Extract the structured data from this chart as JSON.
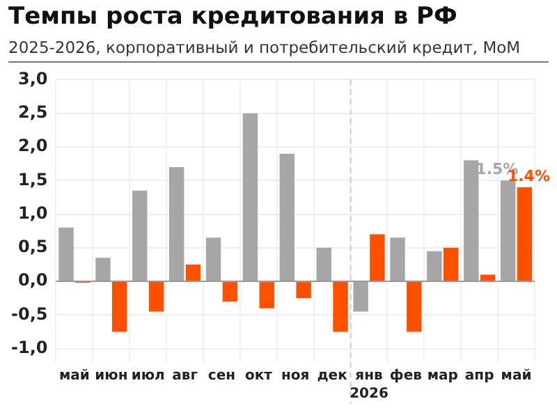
{
  "chart_data": {
    "type": "bar",
    "title": "Темпы роста кредитования в РФ",
    "subtitle": "2025-2026, корпоративный и потребительский кредит, МоМ",
    "categories": [
      "май",
      "июн",
      "июл",
      "авг",
      "сен",
      "окт",
      "ноя",
      "дек",
      "янв",
      "фев",
      "мар",
      "апр",
      "май"
    ],
    "series": [
      {
        "color": "#a6a6a6",
        "values": [
          0.8,
          0.35,
          1.35,
          1.7,
          0.65,
          2.5,
          1.9,
          0.5,
          -0.45,
          0.65,
          0.45,
          1.8,
          1.5
        ],
        "value_labels": [
          null,
          null,
          null,
          null,
          null,
          null,
          null,
          null,
          null,
          null,
          null,
          null,
          "1.5%"
        ]
      },
      {
        "color": "#ff5000",
        "values": [
          -0.02,
          -0.75,
          -0.45,
          0.25,
          -0.3,
          -0.4,
          -0.25,
          -0.75,
          0.7,
          -0.75,
          0.5,
          0.1,
          1.4
        ],
        "value_labels": [
          null,
          null,
          null,
          null,
          null,
          null,
          null,
          null,
          null,
          null,
          null,
          null,
          "1.4%"
        ]
      }
    ],
    "ylim": [
      -1.2,
      3
    ],
    "yticks": [
      {
        "value": -1,
        "label": "-1,0"
      },
      {
        "value": -0.5,
        "label": "-0,5"
      },
      {
        "value": 0,
        "label": "0,0"
      },
      {
        "value": 0.5,
        "label": "0,5"
      },
      {
        "value": 1,
        "label": "1,0"
      },
      {
        "value": 1.5,
        "label": "1,5"
      },
      {
        "value": 2,
        "label": "2,0"
      },
      {
        "value": 2.5,
        "label": "2,5"
      },
      {
        "value": 3,
        "label": "3,0"
      }
    ],
    "grid": true,
    "legend": false,
    "ref_lines": [
      {
        "axis": "x",
        "value": "янв",
        "line_style": "dashed",
        "color": "#cccccc"
      }
    ],
    "annotations": [
      "2026"
    ]
  }
}
